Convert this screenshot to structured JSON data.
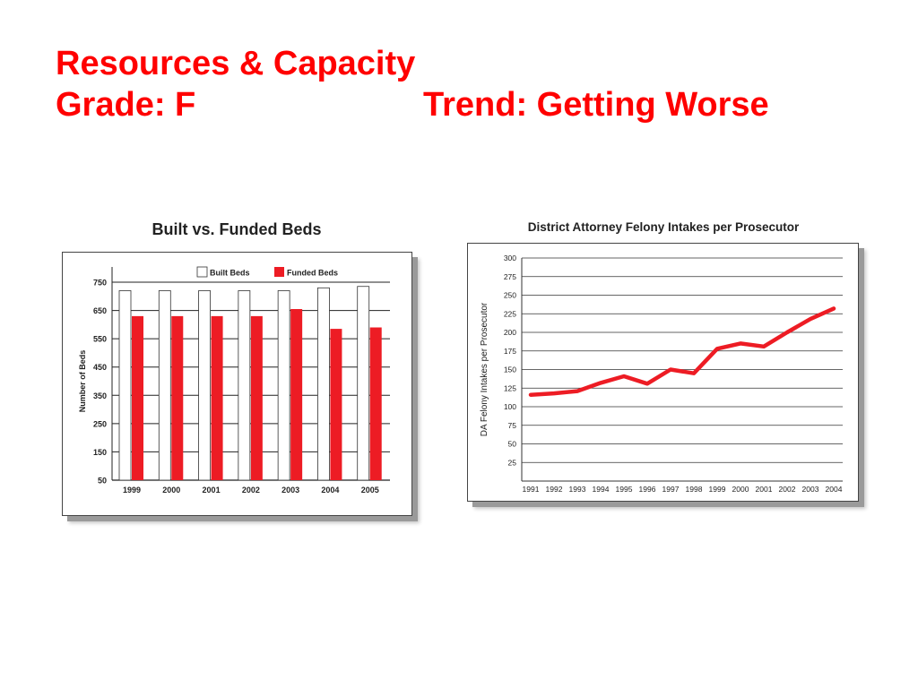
{
  "slide": {
    "title": "Resources & Capacity",
    "grade": "Grade: F",
    "trend": "Trend: Getting Worse",
    "title_color": "#ff0000"
  },
  "chart_data": [
    {
      "type": "bar",
      "title": "Built vs. Funded Beds",
      "ylabel": "Number of Beds",
      "xlabel": "",
      "categories": [
        "1999",
        "2000",
        "2001",
        "2002",
        "2003",
        "2004",
        "2005"
      ],
      "series": [
        {
          "name": "Built Beds",
          "color": "#ffffff",
          "values": [
            720,
            720,
            720,
            720,
            720,
            730,
            735
          ]
        },
        {
          "name": "Funded Beds",
          "color": "#ed1c24",
          "values": [
            630,
            630,
            630,
            630,
            655,
            585,
            590
          ]
        }
      ],
      "ylim": [
        50,
        750
      ],
      "yticks": [
        50,
        150,
        250,
        350,
        450,
        550,
        650,
        750
      ],
      "grid": true,
      "legend": "top-center"
    },
    {
      "type": "line",
      "title": "District Attorney Felony Intakes per Prosecutor",
      "ylabel": "DA Felony Intakes per Prosecutor",
      "xlabel": "",
      "x": [
        "1991",
        "1992",
        "1993",
        "1994",
        "1995",
        "1996",
        "1997",
        "1998",
        "1999",
        "2000",
        "2001",
        "2002",
        "2003",
        "2004"
      ],
      "series": [
        {
          "color": "#ed1c24",
          "values": [
            116,
            118,
            121,
            132,
            141,
            131,
            150,
            145,
            178,
            185,
            181,
            200,
            218,
            232
          ]
        }
      ],
      "ylim": [
        0,
        300
      ],
      "yticks": [
        25,
        50,
        75,
        100,
        125,
        150,
        175,
        200,
        225,
        250,
        275,
        300
      ],
      "grid": true,
      "legend": "none"
    }
  ]
}
